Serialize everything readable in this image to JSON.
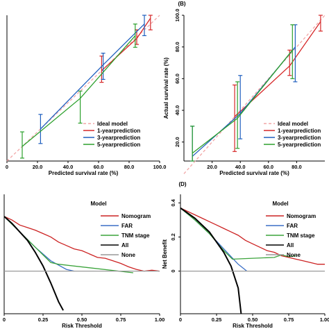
{
  "chart_data": [
    {
      "panel_label": "",
      "type": "line",
      "xlabel": "Predicted survival rate (%)",
      "ylabel": "",
      "x_ticks": [
        "0",
        "20.0",
        "40.0",
        "60.0",
        "80.0",
        "100.0"
      ],
      "y_ticks": [],
      "xlim": [
        0,
        100
      ],
      "ylim": [
        0,
        100
      ],
      "legend": [
        "Ideal model",
        "1-yearprediction",
        "3-yearprediction",
        "5-yearprediction"
      ],
      "series": [
        {
          "name": "Ideal model",
          "color": "#f2a6a6",
          "dashed": true,
          "x": [
            0,
            100
          ],
          "y": [
            0,
            100
          ]
        },
        {
          "name": "1-yearprediction",
          "color": "#d62728",
          "x": [
            62,
            85,
            94
          ],
          "y": [
            62,
            84,
            98
          ],
          "err_lo": [
            54,
            80,
            90
          ],
          "err_hi": [
            72,
            90,
            100
          ]
        },
        {
          "name": "3-yearprediction",
          "color": "#1f5fbf",
          "x": [
            22,
            63,
            90
          ],
          "y": [
            22,
            66,
            94
          ],
          "err_lo": [
            12,
            56,
            86
          ],
          "err_hi": [
            32,
            74,
            100
          ]
        },
        {
          "name": "5-yearprediction",
          "color": "#2ca02c",
          "x": [
            10,
            48,
            84
          ],
          "y": [
            10,
            43,
            86
          ],
          "err_lo": [
            2,
            26,
            78
          ],
          "err_hi": [
            20,
            48,
            94
          ]
        }
      ]
    },
    {
      "panel_label": "(B)",
      "type": "line",
      "xlabel": "Predicted survival rate (%)",
      "ylabel": "Actual survival rate (%)",
      "x_ticks": [
        "20.0",
        "40.0",
        "60.0",
        "80.0"
      ],
      "y_ticks": [
        "20.0",
        "40.0",
        "60.0",
        "80.0",
        "100.0"
      ],
      "xlim": [
        0,
        100
      ],
      "ylim": [
        8,
        100
      ],
      "legend": [
        "Ideal model",
        "1-yearprediction",
        "3-yearprediction",
        "5-yearprediction"
      ],
      "series": [
        {
          "name": "Ideal model",
          "color": "#f2a6a6",
          "dashed": true,
          "x": [
            0,
            100
          ],
          "y": [
            0,
            100
          ]
        },
        {
          "name": "1-yearprediction",
          "color": "#d62728",
          "x": [
            36,
            75,
            97
          ],
          "y": [
            36,
            68,
            96
          ],
          "err_lo": [
            14,
            62,
            90
          ],
          "err_hi": [
            56,
            78,
            100
          ]
        },
        {
          "name": "3-yearprediction",
          "color": "#1f5fbf",
          "x": [
            6,
            40,
            79
          ],
          "y": [
            11,
            38,
            80
          ],
          "err_lo": [
            8,
            22,
            58
          ],
          "err_hi": [
            30,
            62,
            94
          ]
        },
        {
          "name": "5-yearprediction",
          "color": "#2ca02c",
          "x": [
            6,
            38,
            77
          ],
          "y": [
            13,
            35,
            78
          ],
          "err_lo": [
            8,
            16,
            60
          ],
          "err_hi": [
            30,
            58,
            94
          ]
        }
      ]
    },
    {
      "panel_label": "",
      "type": "line",
      "xlabel": "Risk Threshold",
      "ylabel": "",
      "x_ticks": [
        "0",
        "0.25",
        "0.50",
        "0.75",
        "1.00"
      ],
      "y_ticks": [],
      "xlim": [
        0,
        1.0
      ],
      "ylim": [
        -0.25,
        0.45
      ],
      "legend_title": "Model",
      "legend": [
        "Nomogram",
        "FAR",
        "TNM stage",
        "All",
        "None"
      ],
      "series": [
        {
          "name": "Nomogram",
          "color": "#cc2222",
          "x": [
            0,
            0.05,
            0.1,
            0.15,
            0.2,
            0.25,
            0.3,
            0.35,
            0.4,
            0.45,
            0.5,
            0.55,
            0.6,
            0.65,
            0.7,
            0.75,
            0.8,
            0.85,
            0.9,
            0.95,
            1.0
          ],
          "y": [
            0.32,
            0.3,
            0.27,
            0.255,
            0.24,
            0.22,
            0.2,
            0.17,
            0.15,
            0.13,
            0.12,
            0.1,
            0.08,
            0.075,
            0.06,
            0.045,
            0.025,
            0.01,
            0.0,
            0.005,
            0.0
          ]
        },
        {
          "name": "FAR",
          "color": "#3b6fc6",
          "x": [
            0,
            0.1,
            0.2,
            0.3,
            0.4,
            0.45
          ],
          "y": [
            0.32,
            0.23,
            0.14,
            0.06,
            0.01,
            0.0
          ]
        },
        {
          "name": "TNM stage",
          "color": "#3aa33a",
          "x": [
            0,
            0.1,
            0.2,
            0.3,
            0.35,
            0.83
          ],
          "y": [
            0.32,
            0.23,
            0.14,
            0.05,
            0.04,
            -0.01
          ]
        },
        {
          "name": "All",
          "color": "#000000",
          "x": [
            0,
            0.05,
            0.1,
            0.15,
            0.2,
            0.25,
            0.3,
            0.35,
            0.38
          ],
          "y": [
            0.32,
            0.28,
            0.23,
            0.18,
            0.11,
            0.03,
            -0.07,
            -0.18,
            -0.23
          ]
        },
        {
          "name": "None",
          "color": "#999999",
          "x": [
            0,
            1.0
          ],
          "y": [
            0,
            0
          ]
        }
      ]
    },
    {
      "panel_label": "(D)",
      "type": "line",
      "xlabel": "Risk Threshold",
      "ylabel": "Net Benefit",
      "x_ticks": [
        "0",
        "0.25",
        "0.50",
        "0.75",
        "1.00"
      ],
      "y_ticks": [
        "0",
        "0.2",
        "0.4"
      ],
      "xlim": [
        0,
        1.0
      ],
      "ylim": [
        -0.25,
        0.45
      ],
      "legend_title": "Model",
      "legend": [
        "Nomogram",
        "FAR",
        "TNM stage",
        "All",
        "None"
      ],
      "series": [
        {
          "name": "Nomogram",
          "color": "#cc2222",
          "x": [
            0,
            0.05,
            0.1,
            0.15,
            0.2,
            0.25,
            0.3,
            0.35,
            0.4,
            0.45,
            0.5,
            0.55,
            0.6,
            0.65,
            0.7,
            0.75,
            0.8,
            0.85,
            0.9,
            0.95,
            1.0
          ],
          "y": [
            0.37,
            0.35,
            0.33,
            0.31,
            0.29,
            0.27,
            0.25,
            0.23,
            0.21,
            0.18,
            0.16,
            0.14,
            0.12,
            0.11,
            0.09,
            0.08,
            0.07,
            0.06,
            0.05,
            0.04,
            0.04
          ]
        },
        {
          "name": "FAR",
          "color": "#3b6fc6",
          "x": [
            0,
            0.1,
            0.2,
            0.3,
            0.4,
            0.46
          ],
          "y": [
            0.37,
            0.3,
            0.22,
            0.13,
            0.04,
            0.0
          ]
        },
        {
          "name": "TNM stage",
          "color": "#3aa33a",
          "x": [
            0,
            0.1,
            0.2,
            0.3,
            0.36,
            0.5,
            0.65,
            0.7,
            0.75,
            0.8
          ],
          "y": [
            0.37,
            0.3,
            0.22,
            0.12,
            0.07,
            0.075,
            0.08,
            0.095,
            0.085,
            0.09
          ]
        },
        {
          "name": "All",
          "color": "#000000",
          "x": [
            0,
            0.1,
            0.2,
            0.3,
            0.35,
            0.4,
            0.42
          ],
          "y": [
            0.37,
            0.31,
            0.23,
            0.11,
            0.03,
            -0.1,
            -0.25
          ]
        },
        {
          "name": "None",
          "color": "#999999",
          "x": [
            0,
            1.0
          ],
          "y": [
            0,
            0
          ]
        }
      ]
    }
  ]
}
